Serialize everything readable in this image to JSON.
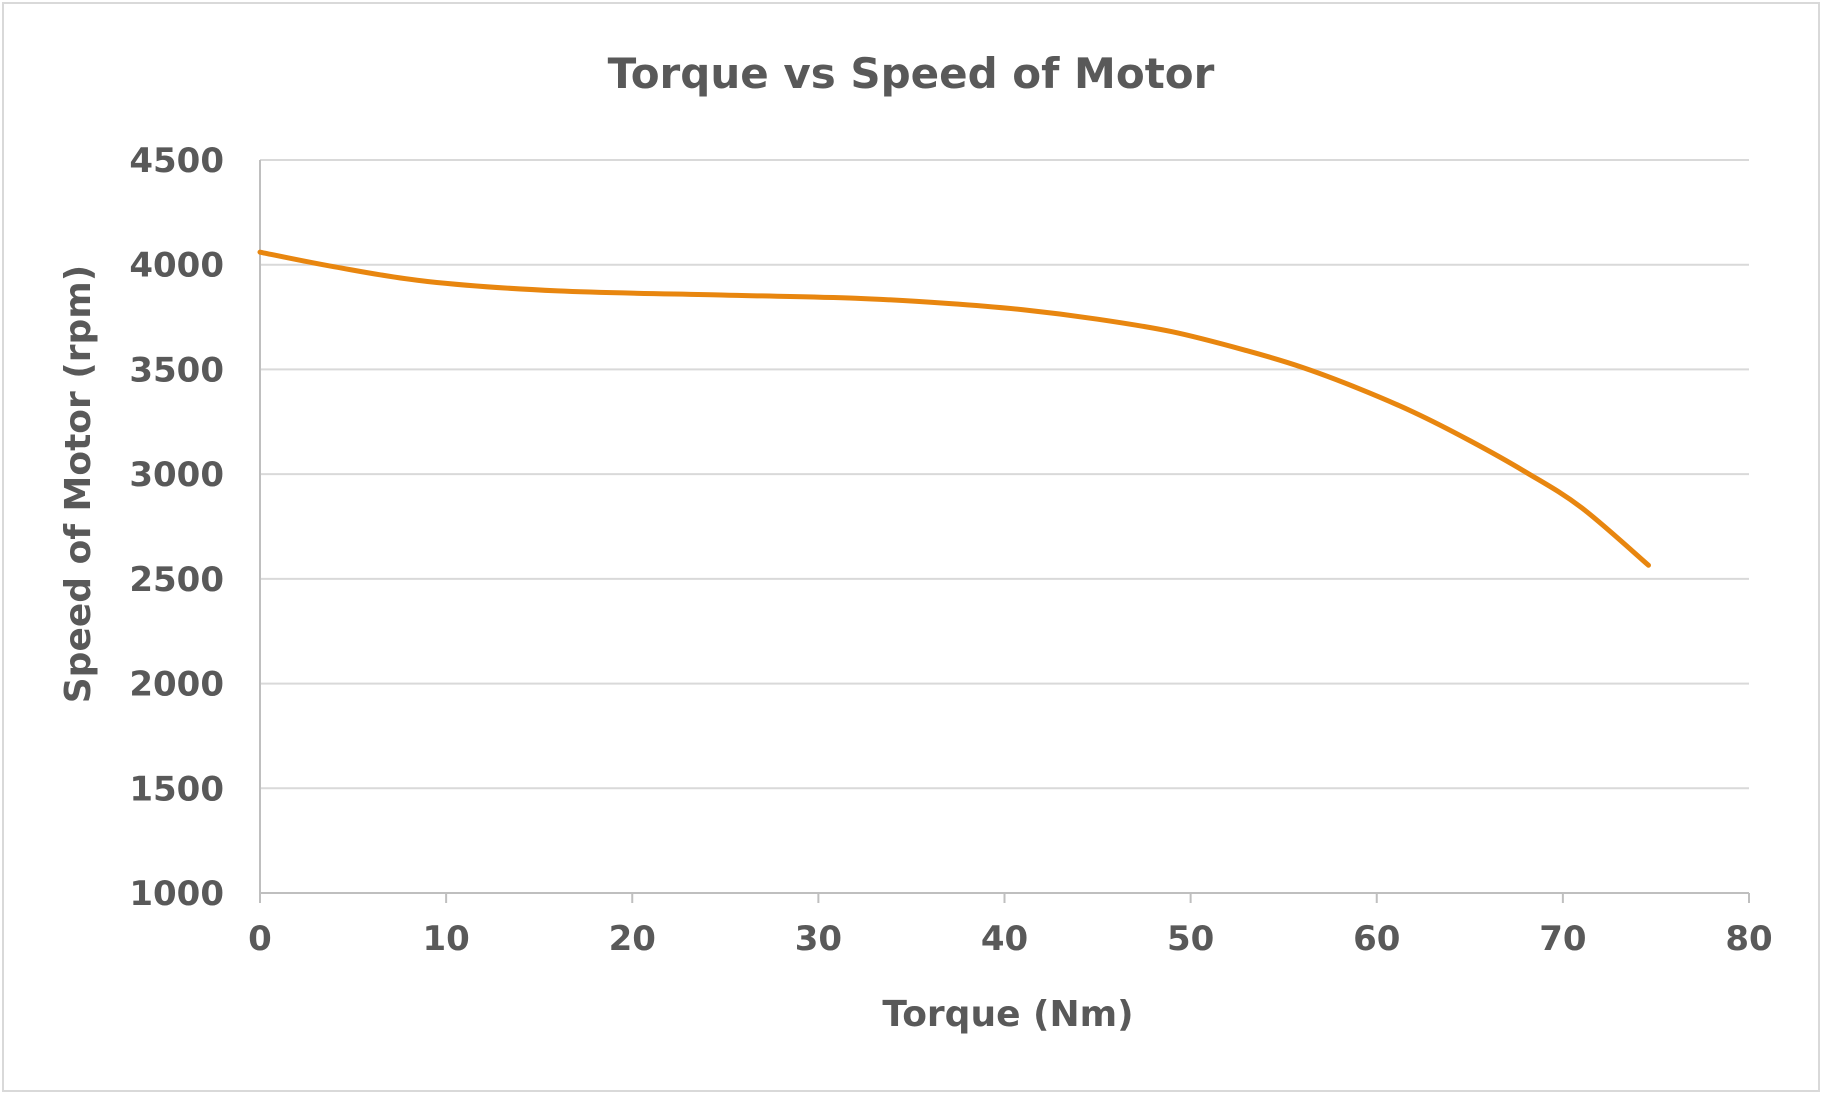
{
  "chart_data": {
    "type": "line",
    "title": "Torque vs Speed of Motor",
    "xlabel": "Torque (Nm)",
    "ylabel": "Speed of Motor (rpm)",
    "xlim": [
      0,
      80
    ],
    "ylim": [
      1000,
      4500
    ],
    "xticks": [
      0,
      10,
      20,
      30,
      40,
      50,
      60,
      70,
      80
    ],
    "yticks": [
      1000,
      1500,
      2000,
      2500,
      3000,
      3500,
      4000,
      4500
    ],
    "grid": true,
    "legend": "none",
    "series": [
      {
        "color": "#e8860f",
        "x": [
          0,
          4,
          9,
          16,
          25,
          32,
          37,
          41,
          45,
          49,
          53,
          56,
          59,
          62,
          65,
          68,
          71,
          74.6
        ],
        "y": [
          4060,
          3990,
          3920,
          3875,
          3855,
          3840,
          3815,
          3785,
          3740,
          3680,
          3590,
          3510,
          3410,
          3295,
          3160,
          3010,
          2840,
          2565
        ]
      }
    ]
  }
}
